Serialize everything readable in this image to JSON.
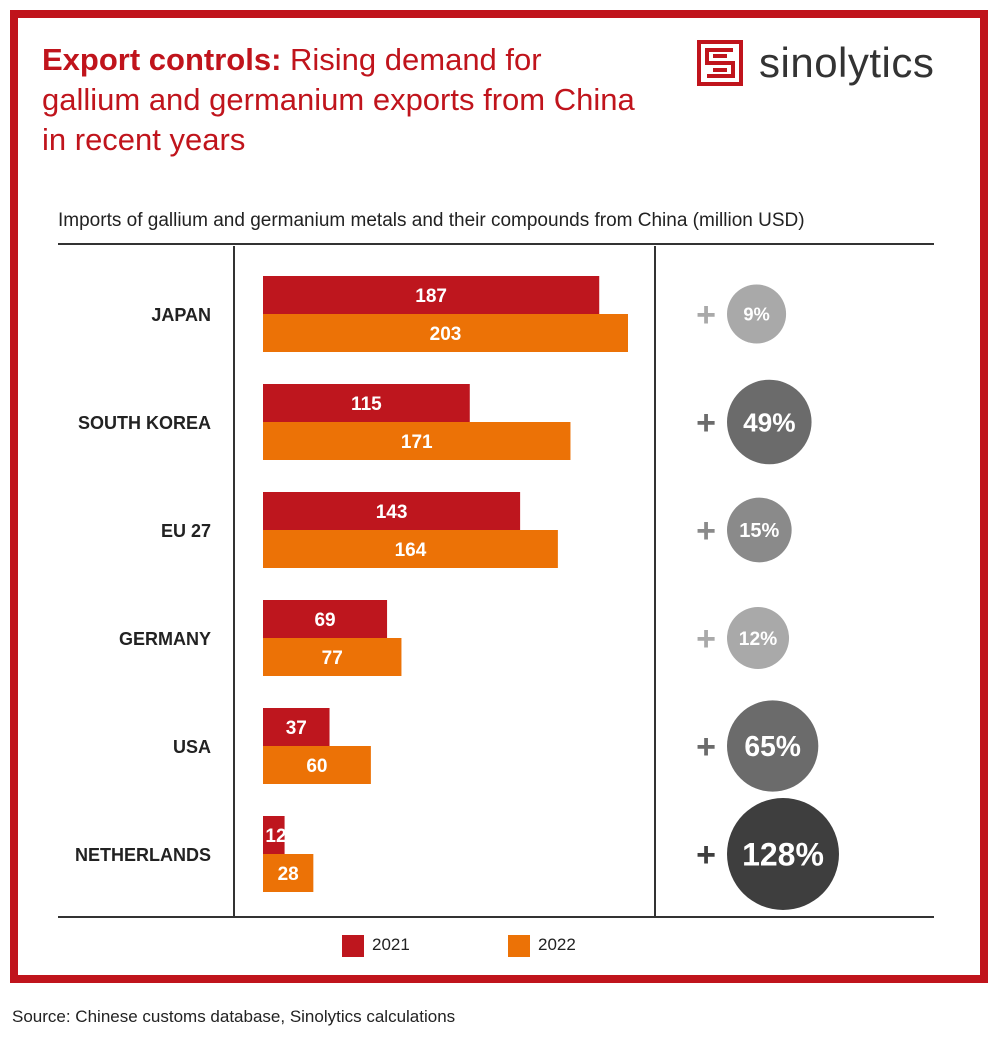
{
  "header": {
    "title_bold": "Export controls:",
    "title_rest": " Rising demand for gallium and germanium exports from China in recent years",
    "logo_text": "sinolytics"
  },
  "footer": {
    "source": "Source: Chinese customs database, Sinolytics calculations"
  },
  "colors": {
    "frame": "#c0141c",
    "series_2021": "#be161e",
    "series_2022": "#ec7206",
    "growth_low": "#a9a9a9",
    "growth_mid": "#8a8a8a",
    "growth_high": "#6b6b6b",
    "growth_max": "#3e3e3e"
  },
  "chart_data": {
    "type": "bar",
    "orientation": "horizontal",
    "title": "Imports of gallium and germanium metals and their compounds from China (million USD)",
    "categories": [
      "JAPAN",
      "SOUTH KOREA",
      "EU 27",
      "GERMANY",
      "USA",
      "NETHERLANDS"
    ],
    "series": [
      {
        "name": "2021",
        "values": [
          187,
          115,
          143,
          69,
          37,
          12
        ]
      },
      {
        "name": "2022",
        "values": [
          203,
          171,
          164,
          77,
          60,
          28
        ]
      }
    ],
    "growth_labels": [
      "9%",
      "49%",
      "15%",
      "12%",
      "65%",
      "128%"
    ],
    "growth_values": [
      9,
      49,
      15,
      12,
      65,
      128
    ],
    "growth_sign": "+",
    "xlim": [
      0,
      203
    ],
    "legend_position": "bottom",
    "grid": false
  }
}
